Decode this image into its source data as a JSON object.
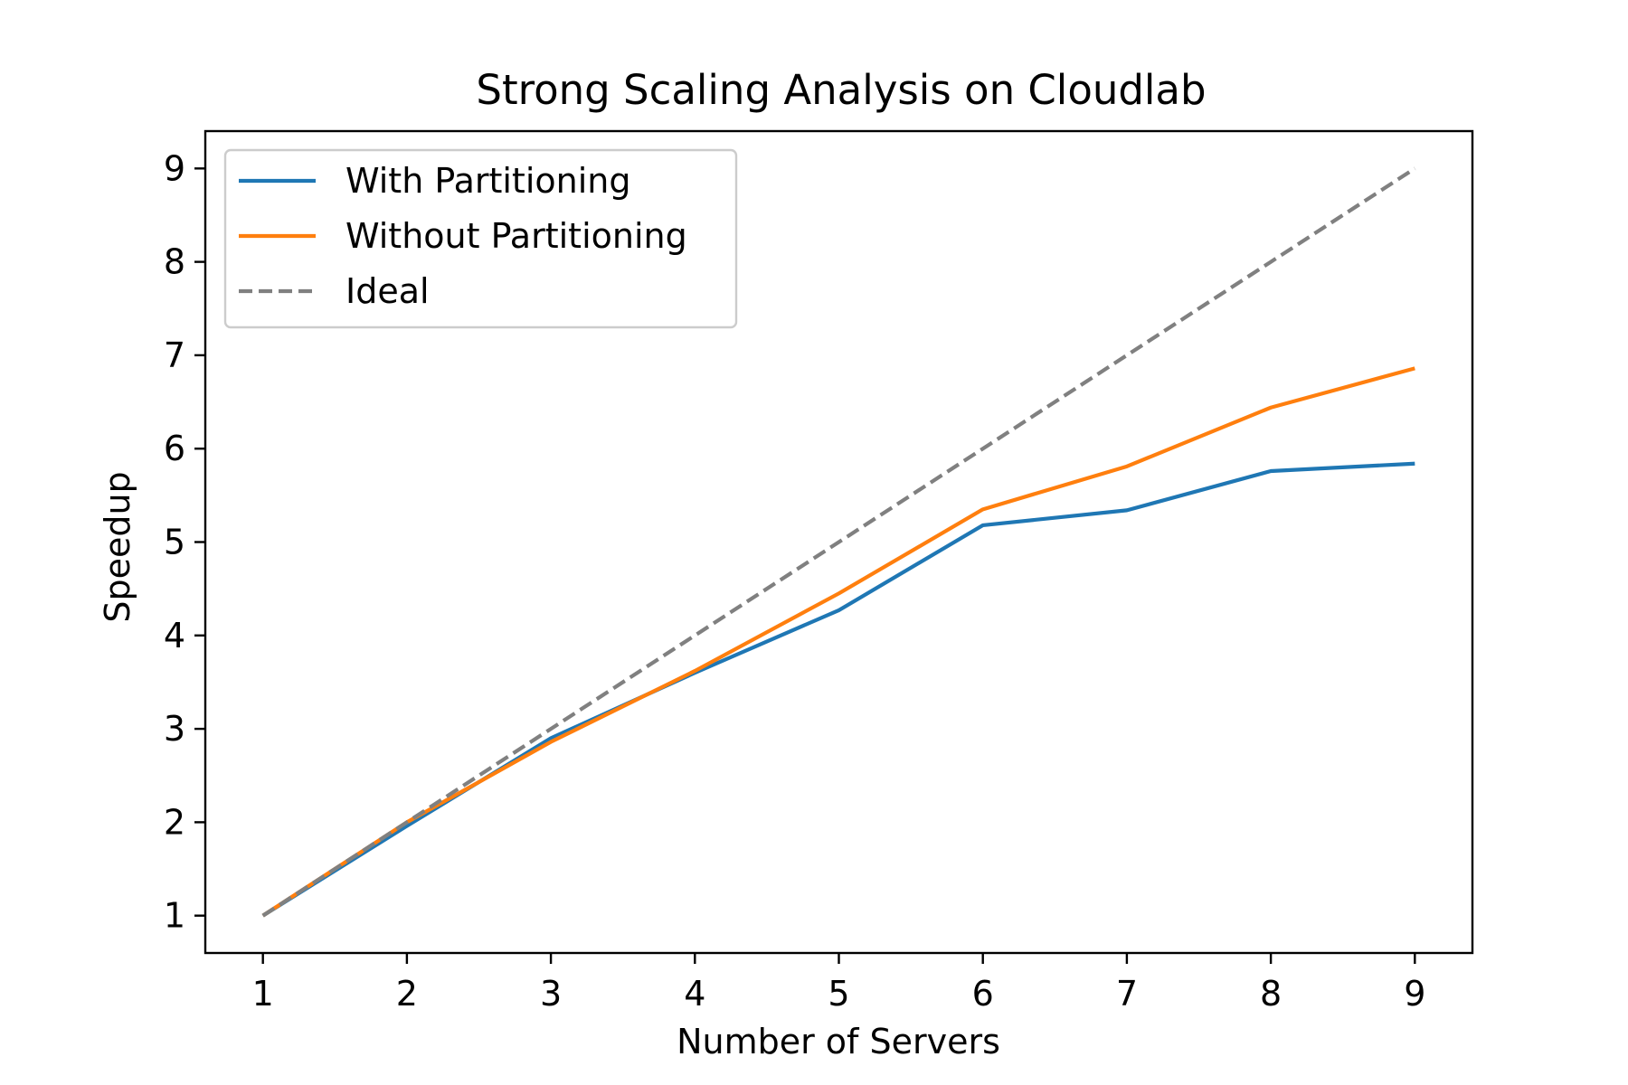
{
  "chart_data": {
    "type": "line",
    "title": "Strong Scaling Analysis on Cloudlab",
    "xlabel": "Number of Servers",
    "ylabel": "Speedup",
    "x": [
      1,
      2,
      3,
      4,
      5,
      6,
      7,
      8,
      9
    ],
    "xlim": [
      0.6,
      9.4
    ],
    "ylim": [
      0.6,
      9.4
    ],
    "xticks": [
      1,
      2,
      3,
      4,
      5,
      6,
      7,
      8,
      9
    ],
    "yticks": [
      1,
      2,
      3,
      4,
      5,
      6,
      7,
      8,
      9
    ],
    "grid": false,
    "legend_position": "top-left",
    "series": [
      {
        "name": "With Partitioning",
        "values": [
          1.0,
          1.96,
          2.9,
          3.6,
          4.27,
          5.18,
          5.34,
          5.76,
          5.84
        ],
        "color": "#1f77b4",
        "style": "solid"
      },
      {
        "name": "Without Partitioning",
        "values": [
          1.0,
          2.0,
          2.86,
          3.62,
          4.45,
          5.35,
          5.81,
          6.44,
          6.86
        ],
        "color": "#ff7f0e",
        "style": "solid"
      },
      {
        "name": "Ideal",
        "values": [
          1,
          2,
          3,
          4,
          5,
          6,
          7,
          8,
          9
        ],
        "color": "#808080",
        "style": "dashed"
      }
    ]
  }
}
